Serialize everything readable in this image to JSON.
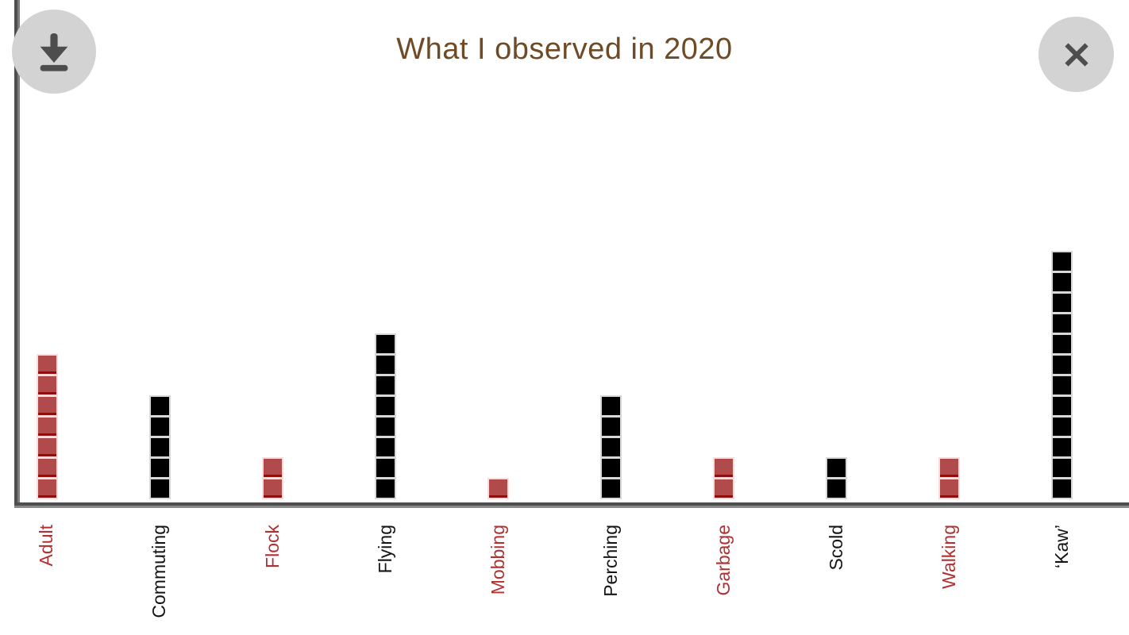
{
  "header": {
    "title": "What I observed in 2020"
  },
  "toolbar": {
    "download_icon": "download-arrow-with-tray",
    "close_icon": "close-x"
  },
  "colors": {
    "title_text": "#6e4a26",
    "red_square_fill": "#b14a4a",
    "red_square_bottom_edge": "#900d0d",
    "red_square_outline": "#f3e1e1",
    "black_square_fill": "#000000",
    "black_square_outline": "#d8d8d8",
    "red_label_text": "#b03131",
    "black_label_text": "#141414",
    "axis_line": "#4e4e4e",
    "button_circle": "#d3d3d3",
    "button_glyph": "#4d4d4d"
  },
  "chart_data": {
    "type": "bar",
    "style": "unit-square-stack",
    "title": "What I observed in 2020",
    "unit_value": 1,
    "categories": [
      "Adult",
      "Commuting",
      "Flock",
      "Flying",
      "Mobbing",
      "Perching",
      "Garbage",
      "Scold",
      "Walking",
      "‘Kaw’"
    ],
    "values": [
      7,
      5,
      2,
      8,
      1,
      5,
      2,
      2,
      2,
      12
    ],
    "series_colors": [
      "red",
      "black",
      "red",
      "black",
      "red",
      "black",
      "red",
      "black",
      "red",
      "black"
    ],
    "xlabel": "",
    "ylabel": "",
    "ylim": [
      0,
      12
    ],
    "grid": false,
    "legend": false,
    "tick_label_rotation_deg": 90
  }
}
